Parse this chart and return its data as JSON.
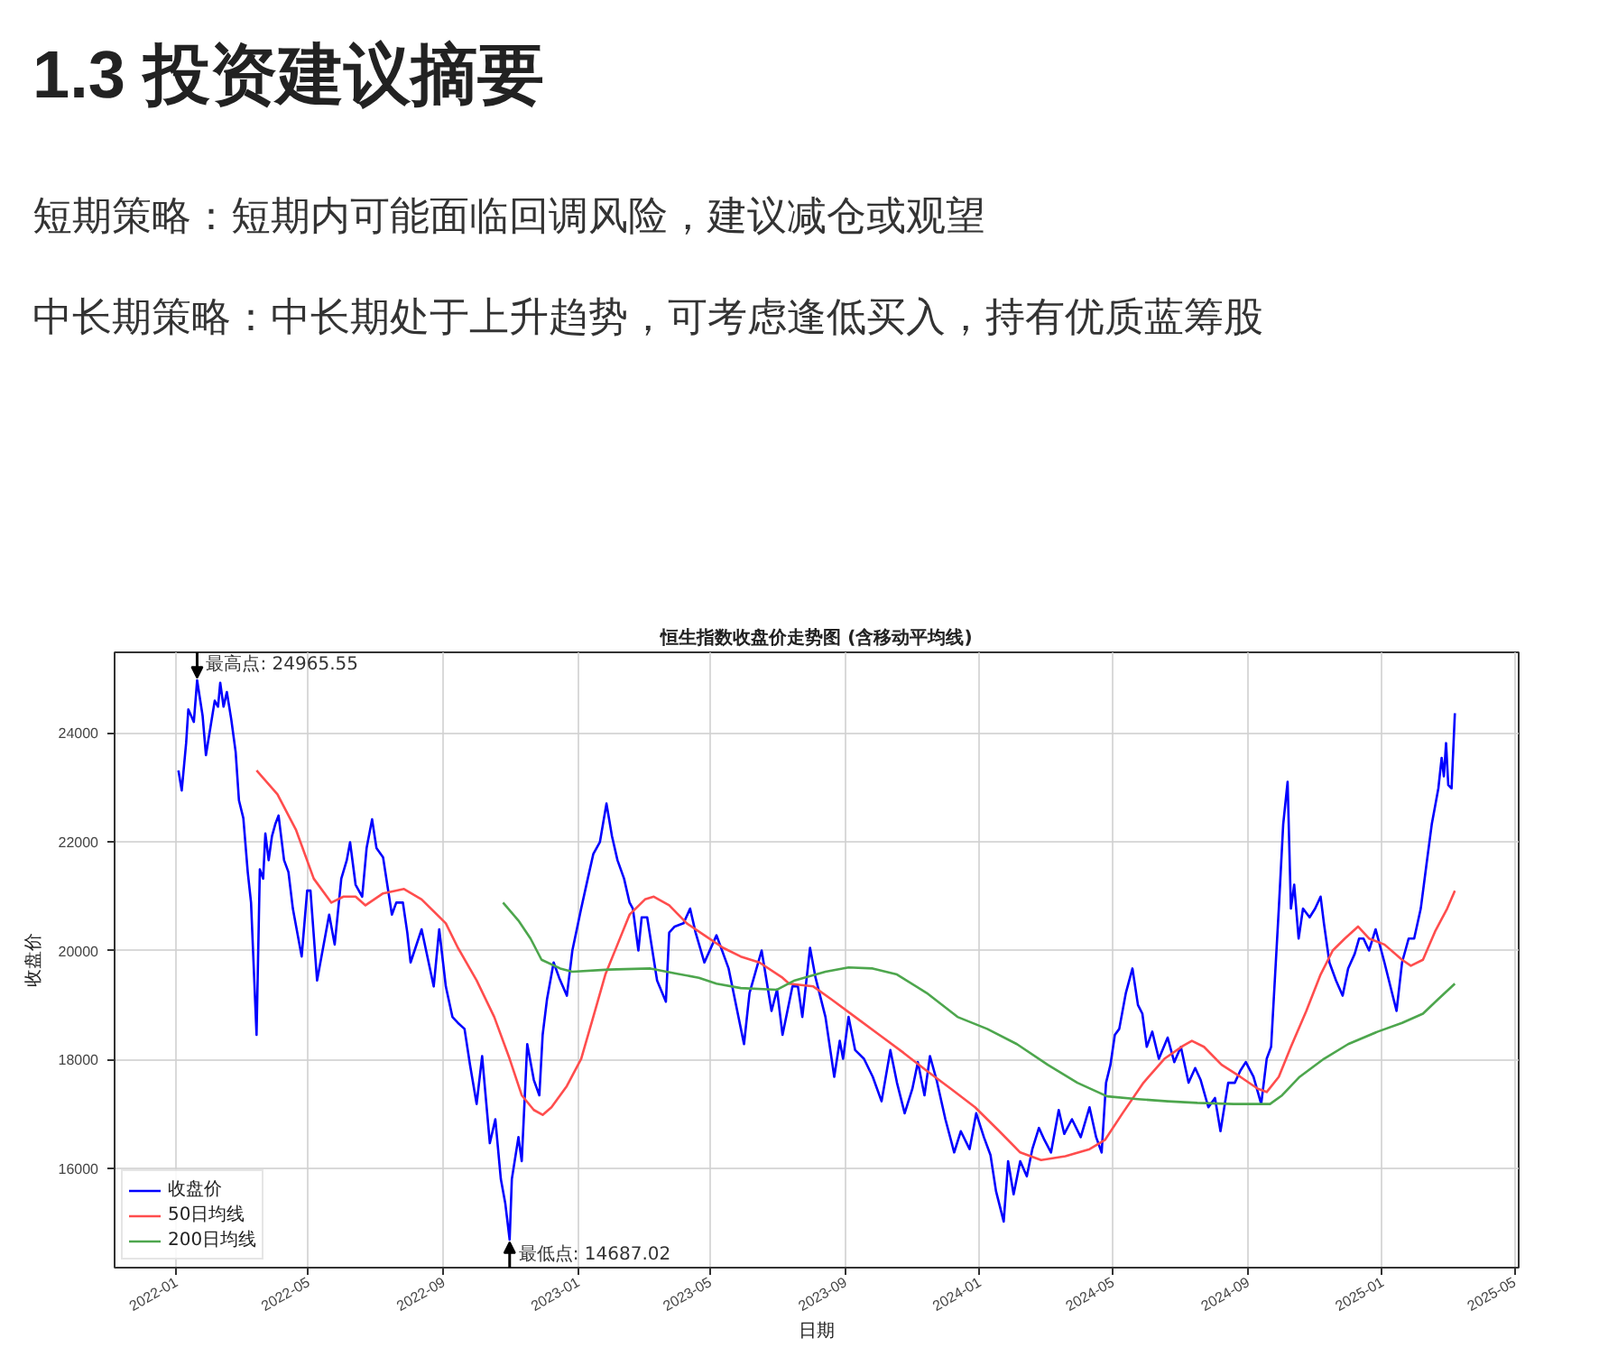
{
  "chart_data": {
    "type": "line",
    "title": "恒生指数收盘价走势图 (含移动平均线)",
    "xlabel": "日期",
    "ylabel": "收盘价",
    "annotations": [
      "1.3 投资建议摘要",
      "短期策略：短期内可能面临回调风险，建议减仓或观望",
      "中长期策略：中长期处于上升趋势，可考虑逢低买入，持有优质蓝筹股",
      {
        "text": "最高点: 24965.55",
        "x": "2022-01-20",
        "y": 24965.55
      },
      {
        "text": "最低点: 14687.02",
        "x": "2022-10-31",
        "y": 14687.02
      }
    ],
    "xlim": [
      "2021-11-06",
      "2025-05-05"
    ],
    "xticks": [
      "2022-01",
      "2022-05",
      "2022-09",
      "2023-01",
      "2023-05",
      "2023-09",
      "2024-01",
      "2024-05",
      "2024-09",
      "2025-01",
      "2025-05"
    ],
    "ylim": [
      14173,
      25479
    ],
    "yticks": [
      16000,
      18000,
      20000,
      22000,
      24000
    ],
    "grid": true,
    "legend": "bottom left",
    "series": [
      {
        "name": "收盘价",
        "color": "#0000ff",
        "x": [
          "2022-01-03",
          "2022-01-06",
          "2022-01-10",
          "2022-01-12",
          "2022-01-17",
          "2022-01-20",
          "2022-01-25",
          "2022-01-28",
          "2022-02-05",
          "2022-02-08",
          "2022-02-10",
          "2022-02-13",
          "2022-02-16",
          "2022-02-20",
          "2022-02-24",
          "2022-02-27",
          "2022-03-03",
          "2022-03-07",
          "2022-03-10",
          "2022-03-15",
          "2022-03-18",
          "2022-03-21",
          "2022-03-23",
          "2022-03-26",
          "2022-03-29",
          "2022-04-01",
          "2022-04-04",
          "2022-04-09",
          "2022-04-13",
          "2022-04-17",
          "2022-04-25",
          "2022-04-30",
          "2022-05-03",
          "2022-05-09",
          "2022-05-20",
          "2022-05-25",
          "2022-05-31",
          "2022-06-05",
          "2022-06-08",
          "2022-06-13",
          "2022-06-19",
          "2022-06-23",
          "2022-06-28",
          "2022-07-02",
          "2022-07-08",
          "2022-07-16",
          "2022-07-20",
          "2022-07-26",
          "2022-07-30",
          "2022-08-02",
          "2022-08-12",
          "2022-08-23",
          "2022-08-28",
          "2022-09-03",
          "2022-09-09",
          "2022-09-14",
          "2022-09-20",
          "2022-09-25",
          "2022-10-01",
          "2022-10-06",
          "2022-10-13",
          "2022-10-18",
          "2022-10-23",
          "2022-10-27",
          "2022-10-31",
          "2022-11-02",
          "2022-11-08",
          "2022-11-11",
          "2022-11-16",
          "2022-11-22",
          "2022-11-27",
          "2022-11-30",
          "2022-12-04",
          "2022-12-10",
          "2022-12-15",
          "2022-12-22",
          "2022-12-27",
          "2023-01-04",
          "2023-01-10",
          "2023-01-15",
          "2023-01-21",
          "2023-01-27",
          "2023-02-01",
          "2023-02-06",
          "2023-02-12",
          "2023-02-17",
          "2023-02-20",
          "2023-02-25",
          "2023-02-28",
          "2023-03-05",
          "2023-03-14",
          "2023-03-22",
          "2023-03-25",
          "2023-03-30",
          "2023-04-07",
          "2023-04-13",
          "2023-04-18",
          "2023-04-26",
          "2023-05-07",
          "2023-05-18",
          "2023-06-01",
          "2023-06-06",
          "2023-06-17",
          "2023-06-26",
          "2023-07-01",
          "2023-07-06",
          "2023-07-15",
          "2023-07-20",
          "2023-07-24",
          "2023-07-31",
          "2023-08-05",
          "2023-08-14",
          "2023-08-22",
          "2023-08-27",
          "2023-08-30",
          "2023-09-04",
          "2023-09-10",
          "2023-09-18",
          "2023-09-26",
          "2023-10-04",
          "2023-10-12",
          "2023-10-18",
          "2023-10-25",
          "2023-11-01",
          "2023-11-06",
          "2023-11-12",
          "2023-11-17",
          "2023-11-23",
          "2023-12-01",
          "2023-12-09",
          "2023-12-15",
          "2023-12-23",
          "2023-12-29",
          "2024-01-05",
          "2024-01-11",
          "2024-01-16",
          "2024-01-23",
          "2024-01-27",
          "2024-02-01",
          "2024-02-07",
          "2024-02-13",
          "2024-02-18",
          "2024-02-24",
          "2024-02-29",
          "2024-03-06",
          "2024-03-13",
          "2024-03-18",
          "2024-03-25",
          "2024-04-02",
          "2024-04-10",
          "2024-04-16",
          "2024-04-21",
          "2024-04-25",
          "2024-04-29",
          "2024-05-03",
          "2024-05-07",
          "2024-05-13",
          "2024-05-19",
          "2024-05-24",
          "2024-05-28",
          "2024-06-01",
          "2024-06-06",
          "2024-06-12",
          "2024-06-20",
          "2024-06-26",
          "2024-07-02",
          "2024-07-09",
          "2024-07-15",
          "2024-07-20",
          "2024-07-27",
          "2024-08-02",
          "2024-08-07",
          "2024-08-14",
          "2024-08-20",
          "2024-08-25",
          "2024-08-30",
          "2024-09-06",
          "2024-09-13",
          "2024-09-18",
          "2024-09-22",
          "2024-09-29",
          "2024-10-03",
          "2024-10-07",
          "2024-10-10",
          "2024-10-13",
          "2024-10-17",
          "2024-10-21",
          "2024-10-27",
          "2024-11-01",
          "2024-11-06",
          "2024-11-09",
          "2024-11-14",
          "2024-11-20",
          "2024-11-26",
          "2024-12-01",
          "2024-12-07",
          "2024-12-11",
          "2024-12-15",
          "2024-12-20",
          "2024-12-26",
          "2025-01-03",
          "2025-01-14",
          "2025-01-19",
          "2025-01-25",
          "2025-01-30",
          "2025-02-05",
          "2025-02-10",
          "2025-02-15",
          "2025-02-18",
          "2025-02-21",
          "2025-02-24",
          "2025-02-26",
          "2025-02-28",
          "2025-03-02",
          "2025-03-05",
          "2025-03-08"
        ],
        "values": [
          23310,
          22940,
          23810,
          24430,
          24200,
          24965.55,
          24310,
          23590,
          24590,
          24480,
          24920,
          24480,
          24750,
          24250,
          23650,
          22760,
          22430,
          21440,
          20880,
          18450,
          21490,
          21320,
          22150,
          21660,
          22100,
          22320,
          22480,
          21660,
          21440,
          20770,
          19890,
          21100,
          21100,
          19450,
          20660,
          20110,
          21320,
          21660,
          21990,
          21210,
          20990,
          21880,
          22410,
          21880,
          21710,
          20660,
          20880,
          20880,
          20330,
          19780,
          20390,
          19340,
          20390,
          19340,
          18780,
          18670,
          18560,
          17900,
          17180,
          18060,
          16460,
          16900,
          15800,
          15360,
          14687.02,
          15800,
          16570,
          16130,
          18280,
          17620,
          17340,
          18450,
          19110,
          19780,
          19500,
          19170,
          20000,
          20770,
          21320,
          21770,
          21990,
          22700,
          22100,
          21660,
          21320,
          20880,
          20770,
          20000,
          20610,
          20610,
          19450,
          19060,
          20330,
          20440,
          20500,
          20770,
          20330,
          19780,
          20280,
          19670,
          18280,
          19220,
          20000,
          18890,
          19280,
          18450,
          19340,
          19340,
          18780,
          20050,
          19500,
          18780,
          17680,
          18340,
          18010,
          18780,
          18170,
          18010,
          17680,
          17230,
          18170,
          17570,
          17010,
          17460,
          17950,
          17340,
          18060,
          17620,
          16900,
          16290,
          16680,
          16350,
          17010,
          16570,
          16240,
          15580,
          15020,
          16130,
          15520,
          16130,
          15850,
          16350,
          16740,
          16520,
          16290,
          17070,
          16630,
          16900,
          16570,
          17120,
          16570,
          16290,
          17570,
          17900,
          18450,
          18560,
          19220,
          19670,
          19000,
          18840,
          18230,
          18510,
          18010,
          18400,
          17950,
          18230,
          17570,
          17840,
          17620,
          17120,
          17290,
          16680,
          17570,
          17570,
          17790,
          17950,
          17680,
          17180,
          18010,
          18230,
          20770,
          22320,
          23100,
          20770,
          21210,
          20220,
          20770,
          20610,
          20770,
          20990,
          20500,
          19780,
          19450,
          19170,
          19670,
          19940,
          20220,
          20220,
          20000,
          20390,
          19780,
          18890,
          19780,
          20220,
          20220,
          20770,
          21550,
          22320,
          22650,
          22980,
          23540,
          23200,
          23810,
          23040,
          22980,
          24360
        ]
      },
      {
        "name": "50日均线",
        "color": "#ff4d4d",
        "x": [
          "2022-03-15",
          "2022-04-03",
          "2022-04-20",
          "2022-05-06",
          "2022-05-22",
          "2022-06-02",
          "2022-06-13",
          "2022-06-22",
          "2022-07-08",
          "2022-07-27",
          "2022-08-12",
          "2022-09-03",
          "2022-09-14",
          "2022-10-01",
          "2022-10-17",
          "2022-10-31",
          "2022-11-11",
          "2022-11-22",
          "2022-11-30",
          "2022-12-08",
          "2022-12-22",
          "2023-01-04",
          "2023-01-15",
          "2023-01-26",
          "2023-02-06",
          "2023-02-17",
          "2023-03-03",
          "2023-03-11",
          "2023-03-25",
          "2023-04-10",
          "2023-04-26",
          "2023-05-13",
          "2023-05-29",
          "2023-06-15",
          "2023-07-06",
          "2023-07-12",
          "2023-08-03",
          "2023-08-19",
          "2023-09-10",
          "2023-10-02",
          "2023-10-24",
          "2023-11-14",
          "2023-12-06",
          "2023-12-28",
          "2024-01-19",
          "2024-02-07",
          "2024-02-26",
          "2024-03-19",
          "2024-04-10",
          "2024-04-24",
          "2024-05-10",
          "2024-05-29",
          "2024-06-17",
          "2024-07-04",
          "2024-07-12",
          "2024-07-23",
          "2024-08-08",
          "2024-08-25",
          "2024-09-10",
          "2024-09-18",
          "2024-09-29",
          "2024-10-10",
          "2024-10-24",
          "2024-11-06",
          "2024-11-17",
          "2024-11-28",
          "2024-12-10",
          "2024-12-20",
          "2025-01-03",
          "2025-01-19",
          "2025-01-27",
          "2025-02-07",
          "2025-02-18",
          "2025-03-01",
          "2025-03-08"
        ],
        "values": [
          23310,
          22870,
          22210,
          21320,
          20880,
          20990,
          20990,
          20830,
          21050,
          21130,
          20940,
          20500,
          20050,
          19450,
          18780,
          18010,
          17340,
          17070,
          16980,
          17120,
          17510,
          18010,
          18780,
          19560,
          20110,
          20660,
          20940,
          20990,
          20830,
          20500,
          20280,
          20050,
          19890,
          19780,
          19500,
          19390,
          19340,
          19110,
          18780,
          18450,
          18120,
          17790,
          17460,
          17120,
          16680,
          16290,
          16150,
          16220,
          16350,
          16520,
          17010,
          17570,
          18010,
          18250,
          18340,
          18230,
          17900,
          17680,
          17460,
          17400,
          17680,
          18230,
          18890,
          19560,
          20000,
          20220,
          20440,
          20220,
          20110,
          19830,
          19720,
          19830,
          20350,
          20770,
          21100
        ]
      },
      {
        "name": "200日均线",
        "color": "#4da64d",
        "x": [
          "2022-10-25",
          "2022-11-08",
          "2022-11-19",
          "2022-11-29",
          "2022-12-16",
          "2022-12-27",
          "2023-01-29",
          "2023-03-08",
          "2023-03-30",
          "2023-04-21",
          "2023-05-07",
          "2023-05-29",
          "2023-07-01",
          "2023-07-17",
          "2023-08-14",
          "2023-09-04",
          "2023-09-26",
          "2023-10-18",
          "2023-11-14",
          "2023-12-12",
          "2024-01-08",
          "2024-02-04",
          "2024-03-03",
          "2024-03-30",
          "2024-04-26",
          "2024-05-24",
          "2024-06-20",
          "2024-07-17",
          "2024-08-19",
          "2024-09-21",
          "2024-10-02",
          "2024-10-18",
          "2024-11-09",
          "2024-12-01",
          "2024-12-28",
          "2025-01-19",
          "2025-02-07",
          "2025-02-21",
          "2025-03-08"
        ],
        "values": [
          20880,
          20550,
          20220,
          19830,
          19670,
          19610,
          19650,
          19670,
          19580,
          19500,
          19390,
          19310,
          19280,
          19450,
          19610,
          19690,
          19670,
          19560,
          19220,
          18780,
          18560,
          18280,
          17900,
          17570,
          17320,
          17270,
          17230,
          17200,
          17180,
          17180,
          17340,
          17680,
          18010,
          18280,
          18510,
          18670,
          18840,
          19110,
          19390
        ]
      }
    ]
  }
}
